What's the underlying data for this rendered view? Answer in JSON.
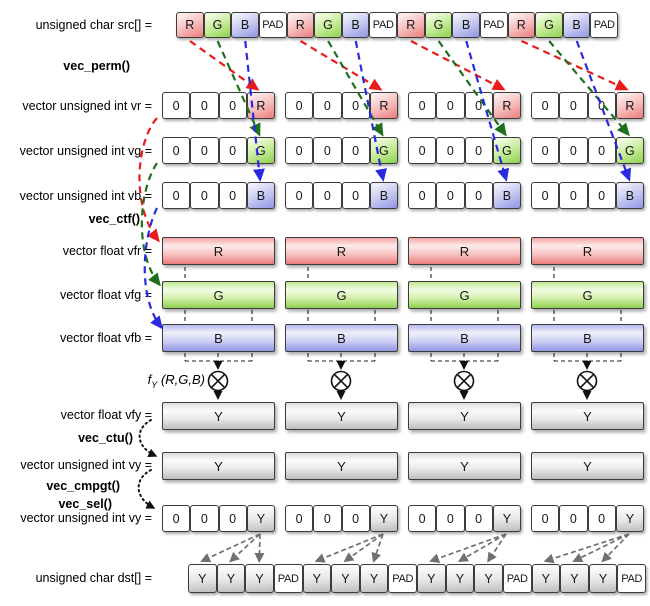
{
  "group_count": 4,
  "palette": {
    "red_cell": "#ea7c7c",
    "green_cell": "#8ed14e",
    "blue_cell": "#9196e3",
    "gray_cell": "#bdbdbd",
    "pad_cell": "#ffffff",
    "arrow_red": "#e81c1c",
    "arrow_green": "#1e701e",
    "arrow_blue": "#2a2ae0",
    "arrow_gray": "#707070",
    "arrow_black": "#111111"
  },
  "labels": {
    "src": "unsigned char src[] =",
    "vec_perm": "vec_perm()",
    "vr": "vector unsigned int vr =",
    "vg": "vector unsigned int vg =",
    "vb": "vector unsigned int vb =",
    "vec_ctf": "vec_ctf()",
    "vfr": "vector float vfr =",
    "vfg": "vector float vfg =",
    "vfb": "vector float vfb =",
    "fy_f": "f",
    "fy_sub": "Y",
    "fy_args": "(R,G,B)",
    "vfy": "vector float vfy =",
    "vec_ctu": "vec_ctu()",
    "vy": "vector unsigned int vy =",
    "vec_cmpgt": "vec_cmpgt()",
    "vec_sel": "vec_sel()",
    "vy_sel": "vector unsigned int vy =",
    "dst": "unsigned char dst[] ="
  },
  "icons": {
    "multiply-icon": "⊗"
  },
  "src_cells": [
    "R",
    "G",
    "B",
    "PAD",
    "R",
    "G",
    "B",
    "PAD",
    "R",
    "G",
    "B",
    "PAD",
    "R",
    "G",
    "B",
    "PAD"
  ],
  "dst_cells": [
    "Y",
    "Y",
    "Y",
    "PAD",
    "Y",
    "Y",
    "Y",
    "PAD",
    "Y",
    "Y",
    "Y",
    "PAD",
    "Y",
    "Y",
    "Y",
    "PAD"
  ],
  "group_rows": {
    "vr": [
      "0",
      "0",
      "0",
      "R"
    ],
    "vg": [
      "0",
      "0",
      "0",
      "G"
    ],
    "vb": [
      "0",
      "0",
      "0",
      "B"
    ],
    "vy_sel": [
      "0",
      "0",
      "0",
      "Y"
    ]
  },
  "bar_rows": {
    "vfr": "R",
    "vfg": "G",
    "vfb": "B",
    "vfy": "Y",
    "vy": "Y"
  }
}
